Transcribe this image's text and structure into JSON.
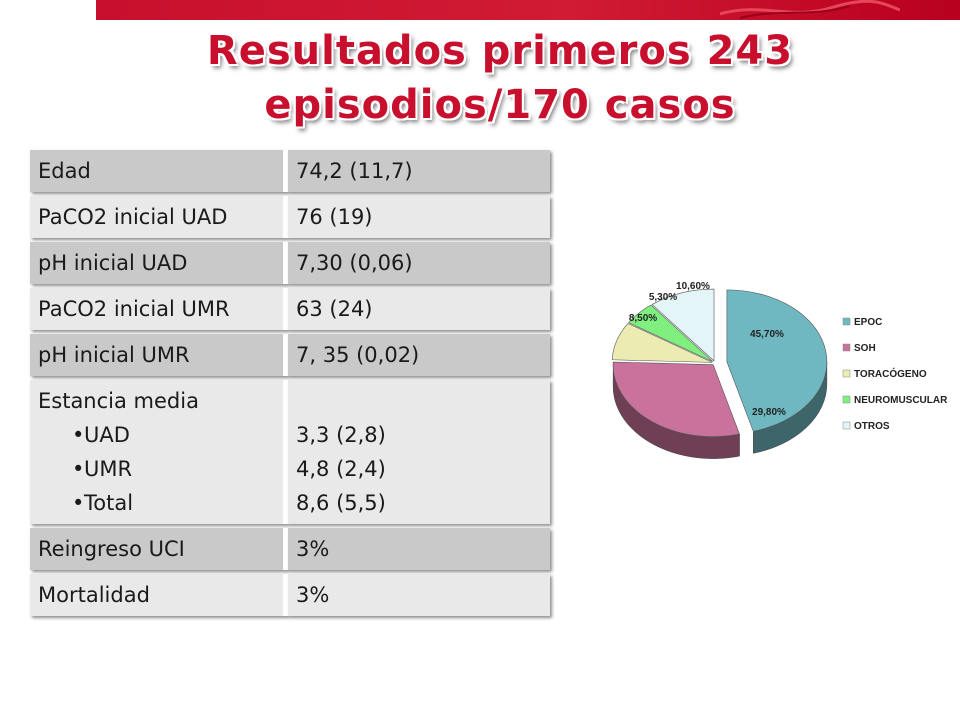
{
  "slide": {
    "title_line1": "Resultados primeros 243",
    "title_line2": "episodios/170 casos"
  },
  "table": {
    "rows": [
      {
        "label": "Edad",
        "value": "74,2 (11,7)"
      },
      {
        "label": "PaCO2 inicial UAD",
        "value": "76 (19)"
      },
      {
        "label": "pH inicial UAD",
        "value": "7,30  (0,06)"
      },
      {
        "label": "PaCO2 inicial UMR",
        "value": "63 (24)"
      },
      {
        "label": "pH inicial UMR",
        "value": "7, 35 (0,02)"
      },
      {
        "label": "Estancia media",
        "items": [
          "UAD",
          "UMR",
          "Total"
        ],
        "values": [
          "3,3 (2,8)",
          "4,8 (2,4)",
          "8,6 (5,5)"
        ]
      },
      {
        "label": "Reingreso UCI",
        "value": "3%"
      },
      {
        "label": "Mortalidad",
        "value": "3%"
      }
    ]
  },
  "chart_data": {
    "type": "pie",
    "slices": [
      {
        "name": "EPOC",
        "value": 45.7,
        "label": "45,70%",
        "color": "#6fb8c1"
      },
      {
        "name": "SOH",
        "value": 29.8,
        "label": "29,80%",
        "color": "#c9729b"
      },
      {
        "name": "TORACÓGENO",
        "value": 8.5,
        "label": "8,50%",
        "color": "#ecebb2"
      },
      {
        "name": "NEUROMUSCULAR",
        "value": 5.3,
        "label": "5,30%",
        "color": "#7ff07f"
      },
      {
        "name": "OTROS",
        "value": 10.6,
        "label": "10,60%",
        "color": "#e3f5f7"
      }
    ],
    "legend_position": "right",
    "style": "3d-exploded"
  }
}
